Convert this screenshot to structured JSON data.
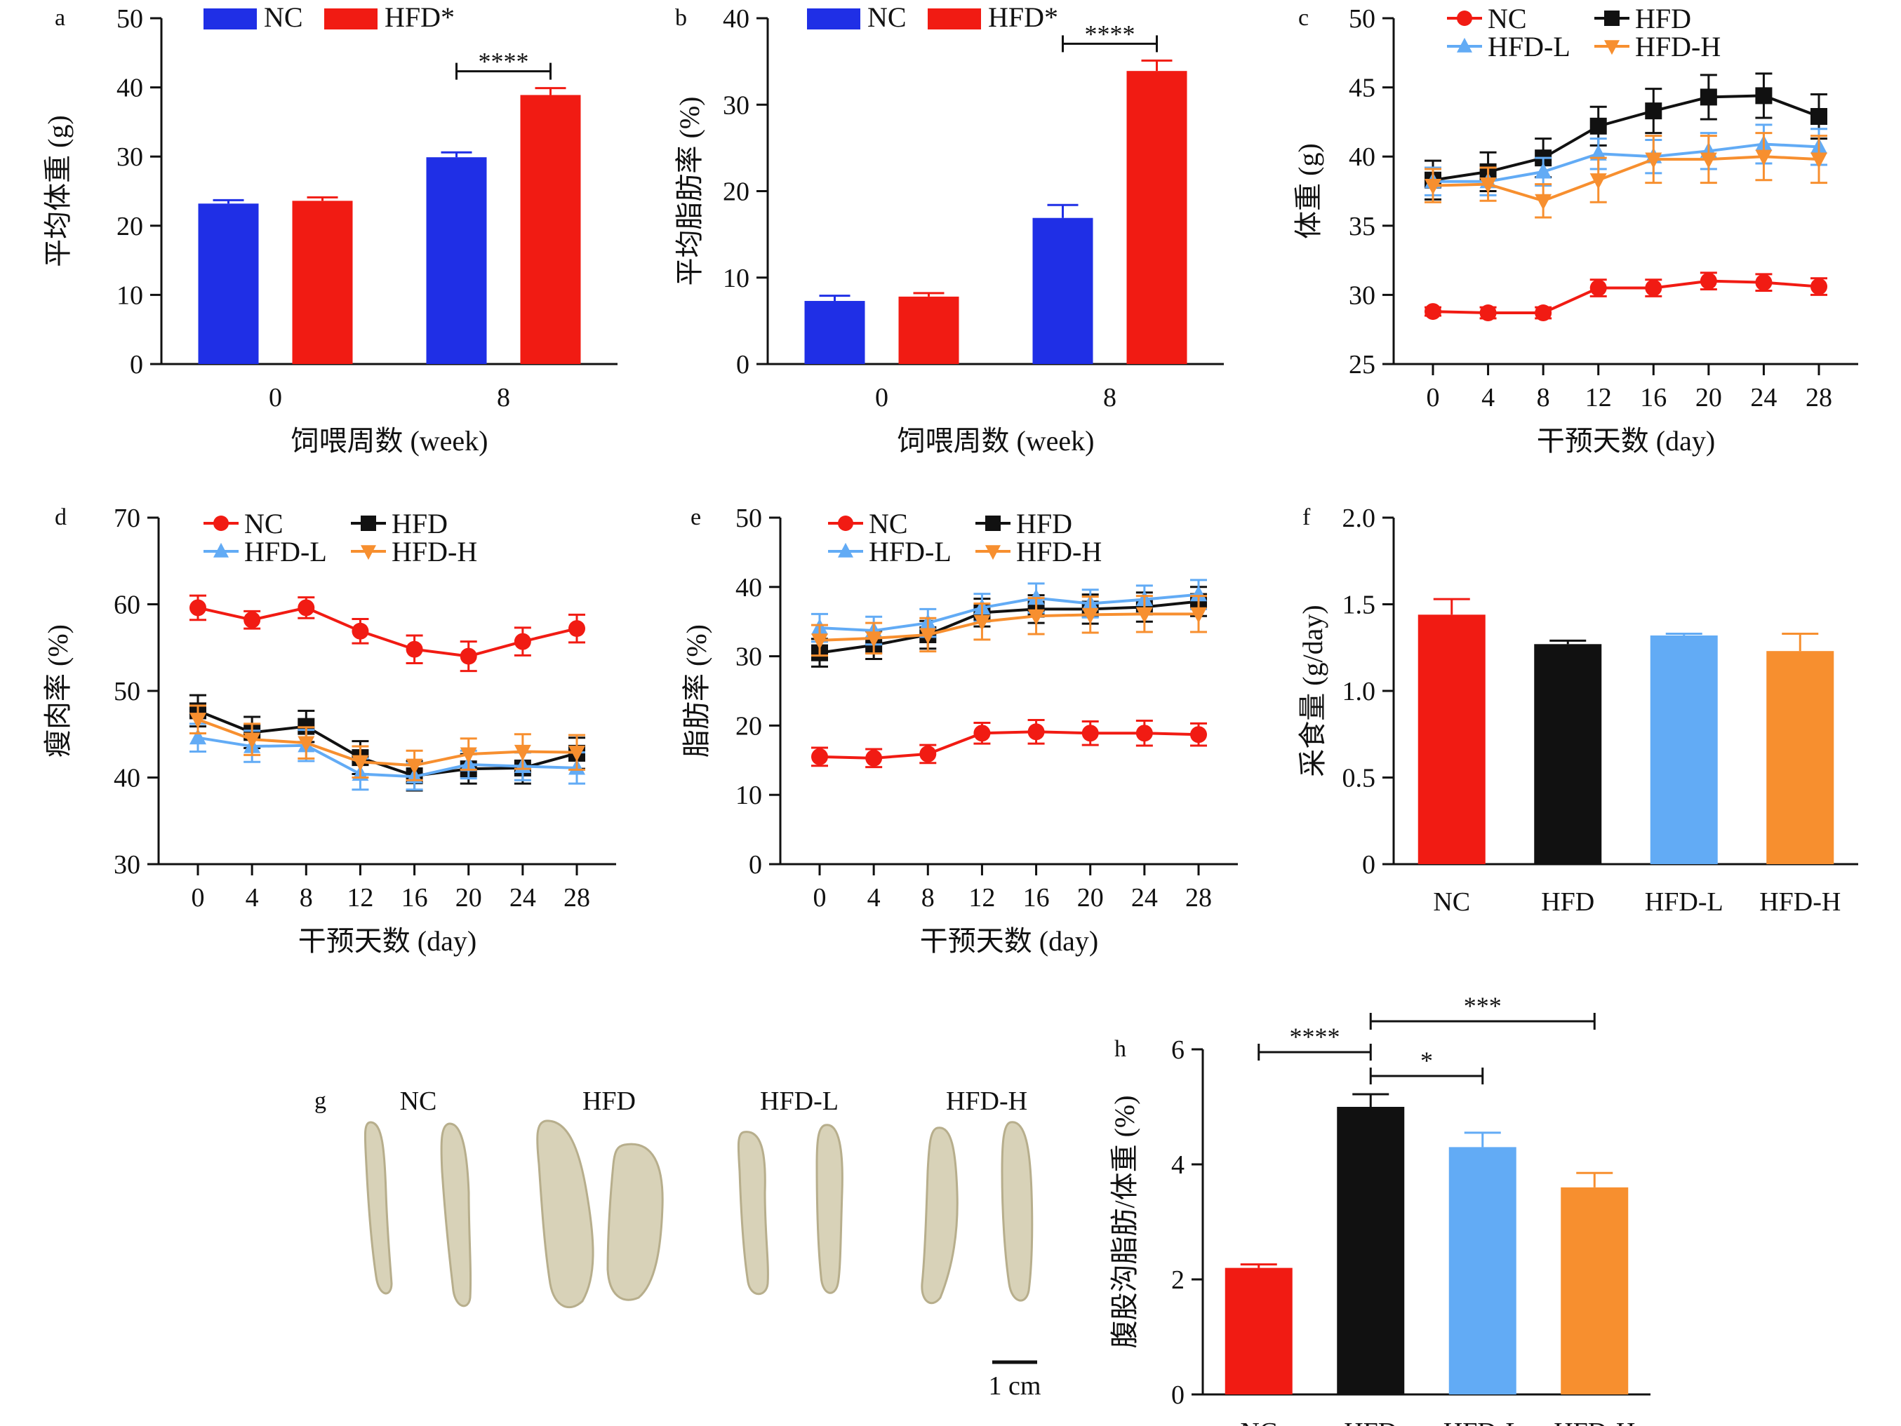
{
  "colors": {
    "nc_blue": "#1f2fe6",
    "hfd_red": "#f11b13",
    "nc_red": "#f11b13",
    "hfd_black": "#111111",
    "hfdl_blue": "#62abf5",
    "hfdh_orange": "#f78f2f",
    "axis": "#111111"
  },
  "chart_data": [
    {
      "panel": "a",
      "type": "bar",
      "categories": [
        "0",
        "8"
      ],
      "series": [
        {
          "name": "NC",
          "values": [
            23.2,
            29.9
          ],
          "errors": [
            0.5,
            0.7
          ],
          "color": "#1f2fe6"
        },
        {
          "name": "HFD*",
          "values": [
            23.6,
            38.9
          ],
          "errors": [
            0.5,
            1.0
          ],
          "color": "#f11b13"
        }
      ],
      "ylabel": "平均体重 (g)",
      "xlabel": "饲喂周数 (week)",
      "ylim": [
        0,
        50
      ],
      "yticks": [
        "0",
        "10",
        "20",
        "30",
        "40",
        "50"
      ],
      "significance": [
        {
          "label": "****",
          "category": "8"
        }
      ],
      "legend": "top"
    },
    {
      "panel": "b",
      "type": "bar",
      "categories": [
        "0",
        "8"
      ],
      "series": [
        {
          "name": "NC",
          "values": [
            7.3,
            16.9
          ],
          "errors": [
            0.6,
            1.5
          ],
          "color": "#1f2fe6"
        },
        {
          "name": "HFD*",
          "values": [
            7.8,
            33.9
          ],
          "errors": [
            0.4,
            1.2
          ],
          "color": "#f11b13"
        }
      ],
      "ylabel": "平均脂肪率 (%)",
      "xlabel": "饲喂周数 (week)",
      "ylim": [
        0,
        40
      ],
      "yticks": [
        "0",
        "10",
        "20",
        "30",
        "40"
      ],
      "significance": [
        {
          "label": "****",
          "category": "8"
        }
      ],
      "legend": "top"
    },
    {
      "panel": "c",
      "type": "line",
      "x": [
        0,
        4,
        8,
        12,
        16,
        20,
        24,
        28
      ],
      "xticks": [
        "0",
        "4",
        "8",
        "12",
        "16",
        "20",
        "24",
        "28"
      ],
      "series": [
        {
          "name": "NC",
          "values": [
            28.8,
            28.7,
            28.7,
            30.5,
            30.5,
            31.0,
            30.9,
            30.6
          ],
          "errors": [
            0.3,
            0.4,
            0.4,
            0.6,
            0.6,
            0.6,
            0.6,
            0.6
          ],
          "color": "#f11b13",
          "marker": "circle"
        },
        {
          "name": "HFD",
          "values": [
            38.3,
            38.9,
            39.9,
            42.2,
            43.3,
            44.3,
            44.4,
            42.9
          ],
          "errors": [
            1.4,
            1.4,
            1.4,
            1.4,
            1.6,
            1.6,
            1.6,
            1.6
          ],
          "color": "#111111",
          "marker": "square"
        },
        {
          "name": "HFD-L",
          "values": [
            38.2,
            38.2,
            38.9,
            40.2,
            40.0,
            40.4,
            40.9,
            40.7
          ],
          "errors": [
            1.0,
            1.0,
            1.0,
            1.1,
            1.2,
            1.3,
            1.4,
            1.3
          ],
          "color": "#62abf5",
          "marker": "triangle-up"
        },
        {
          "name": "HFD-H",
          "values": [
            37.9,
            38.0,
            36.8,
            38.3,
            39.8,
            39.8,
            40.0,
            39.8
          ],
          "errors": [
            1.2,
            1.2,
            1.2,
            1.6,
            1.7,
            1.7,
            1.7,
            1.7
          ],
          "color": "#f78f2f",
          "marker": "triangle-down"
        }
      ],
      "ylabel": "体重 (g)",
      "xlabel": "干预天数 (day)",
      "ylim": [
        25,
        50
      ],
      "yticks": [
        "25",
        "30",
        "35",
        "40",
        "45",
        "50"
      ],
      "legend": "top"
    },
    {
      "panel": "d",
      "type": "line",
      "x": [
        0,
        4,
        8,
        12,
        16,
        20,
        24,
        28
      ],
      "xticks": [
        "0",
        "4",
        "8",
        "12",
        "16",
        "20",
        "24",
        "28"
      ],
      "series": [
        {
          "name": "NC",
          "values": [
            59.6,
            58.2,
            59.6,
            56.9,
            54.8,
            54.0,
            55.7,
            57.2
          ],
          "errors": [
            1.4,
            1.0,
            1.2,
            1.4,
            1.6,
            1.7,
            1.6,
            1.6
          ],
          "color": "#f11b13",
          "marker": "circle"
        },
        {
          "name": "HFD",
          "values": [
            47.7,
            45.2,
            45.9,
            42.3,
            40.2,
            41.0,
            41.1,
            42.8
          ],
          "errors": [
            1.8,
            1.8,
            1.8,
            1.9,
            1.7,
            1.7,
            1.8,
            1.8
          ],
          "color": "#111111",
          "marker": "square"
        },
        {
          "name": "HFD-L",
          "values": [
            44.6,
            43.6,
            43.7,
            40.4,
            40.1,
            41.5,
            41.3,
            41.1
          ],
          "errors": [
            1.6,
            1.8,
            1.8,
            1.8,
            1.5,
            1.6,
            1.6,
            1.8
          ],
          "color": "#62abf5",
          "marker": "triangle-up"
        },
        {
          "name": "HFD-H",
          "values": [
            46.7,
            44.4,
            44.0,
            41.8,
            41.4,
            42.7,
            43.0,
            42.9
          ],
          "errors": [
            1.6,
            1.8,
            1.8,
            1.8,
            1.7,
            1.8,
            2.0,
            2.0
          ],
          "color": "#f78f2f",
          "marker": "triangle-down"
        }
      ],
      "ylabel": "瘦肉率 (%)",
      "xlabel": "干预天数 (day)",
      "ylim": [
        30,
        70
      ],
      "yticks": [
        "30",
        "40",
        "50",
        "60",
        "70"
      ],
      "legend": "top"
    },
    {
      "panel": "e",
      "type": "line",
      "x": [
        0,
        4,
        8,
        12,
        16,
        20,
        24,
        28
      ],
      "xticks": [
        "0",
        "4",
        "8",
        "12",
        "16",
        "20",
        "24",
        "28"
      ],
      "series": [
        {
          "name": "NC",
          "values": [
            15.5,
            15.3,
            15.9,
            18.9,
            19.1,
            18.9,
            18.9,
            18.7
          ],
          "errors": [
            1.3,
            1.3,
            1.3,
            1.5,
            1.7,
            1.7,
            1.8,
            1.6
          ],
          "color": "#f11b13",
          "marker": "circle"
        },
        {
          "name": "HFD",
          "values": [
            30.5,
            31.6,
            33.1,
            36.3,
            36.8,
            36.8,
            37.1,
            37.9
          ],
          "errors": [
            2.0,
            2.0,
            2.0,
            2.0,
            2.0,
            2.1,
            2.1,
            2.1
          ],
          "color": "#111111",
          "marker": "square"
        },
        {
          "name": "HFD-L",
          "values": [
            34.1,
            33.7,
            34.8,
            37.0,
            38.4,
            37.6,
            38.2,
            38.9
          ],
          "errors": [
            2.0,
            2.0,
            2.0,
            2.0,
            2.1,
            2.0,
            2.0,
            2.1
          ],
          "color": "#62abf5",
          "marker": "triangle-up"
        },
        {
          "name": "HFD-H",
          "values": [
            32.3,
            32.6,
            33.1,
            35.0,
            35.8,
            36.0,
            36.1,
            36.1
          ],
          "errors": [
            2.2,
            2.2,
            2.4,
            2.6,
            2.6,
            2.6,
            2.6,
            2.6
          ],
          "color": "#f78f2f",
          "marker": "triangle-down"
        }
      ],
      "ylabel": "脂肪率 (%)",
      "xlabel": "干预天数 (day)",
      "ylim": [
        0,
        50
      ],
      "yticks": [
        "0",
        "10",
        "20",
        "30",
        "40",
        "50"
      ],
      "legend": "top"
    },
    {
      "panel": "f",
      "type": "bar",
      "categories": [
        "NC",
        "HFD",
        "HFD-L",
        "HFD-H"
      ],
      "values": [
        1.44,
        1.27,
        1.32,
        1.23
      ],
      "errors": [
        0.09,
        0.02,
        0.01,
        0.1
      ],
      "colors": [
        "#f11b13",
        "#111111",
        "#62abf5",
        "#f78f2f"
      ],
      "ylabel": "采食量 (g/day)",
      "ylim": [
        0,
        2.0
      ],
      "yticks": [
        "0",
        "0.5",
        "1.0",
        "1.5",
        "2.0"
      ]
    },
    {
      "panel": "h",
      "type": "bar",
      "categories": [
        "NC",
        "HFD",
        "HFD-L",
        "HFD-H"
      ],
      "values": [
        2.2,
        5.0,
        4.3,
        3.6
      ],
      "errors": [
        0.06,
        0.22,
        0.25,
        0.25
      ],
      "colors": [
        "#f11b13",
        "#111111",
        "#62abf5",
        "#f78f2f"
      ],
      "ylabel": "腹股沟脂肪/体重 (%)",
      "ylim": [
        0,
        6
      ],
      "yticks": [
        "0",
        "2",
        "4",
        "6"
      ],
      "significance": [
        {
          "label": "****",
          "from": "NC",
          "to": "HFD"
        },
        {
          "label": "*",
          "from": "HFD",
          "to": "HFD-L"
        },
        {
          "label": "***",
          "from": "HFD",
          "to": "HFD-H"
        }
      ]
    }
  ],
  "photo_panel": {
    "panel": "g",
    "group_labels": [
      "NC",
      "HFD",
      "HFD-L",
      "HFD-H"
    ],
    "scale_label": "1 cm"
  }
}
